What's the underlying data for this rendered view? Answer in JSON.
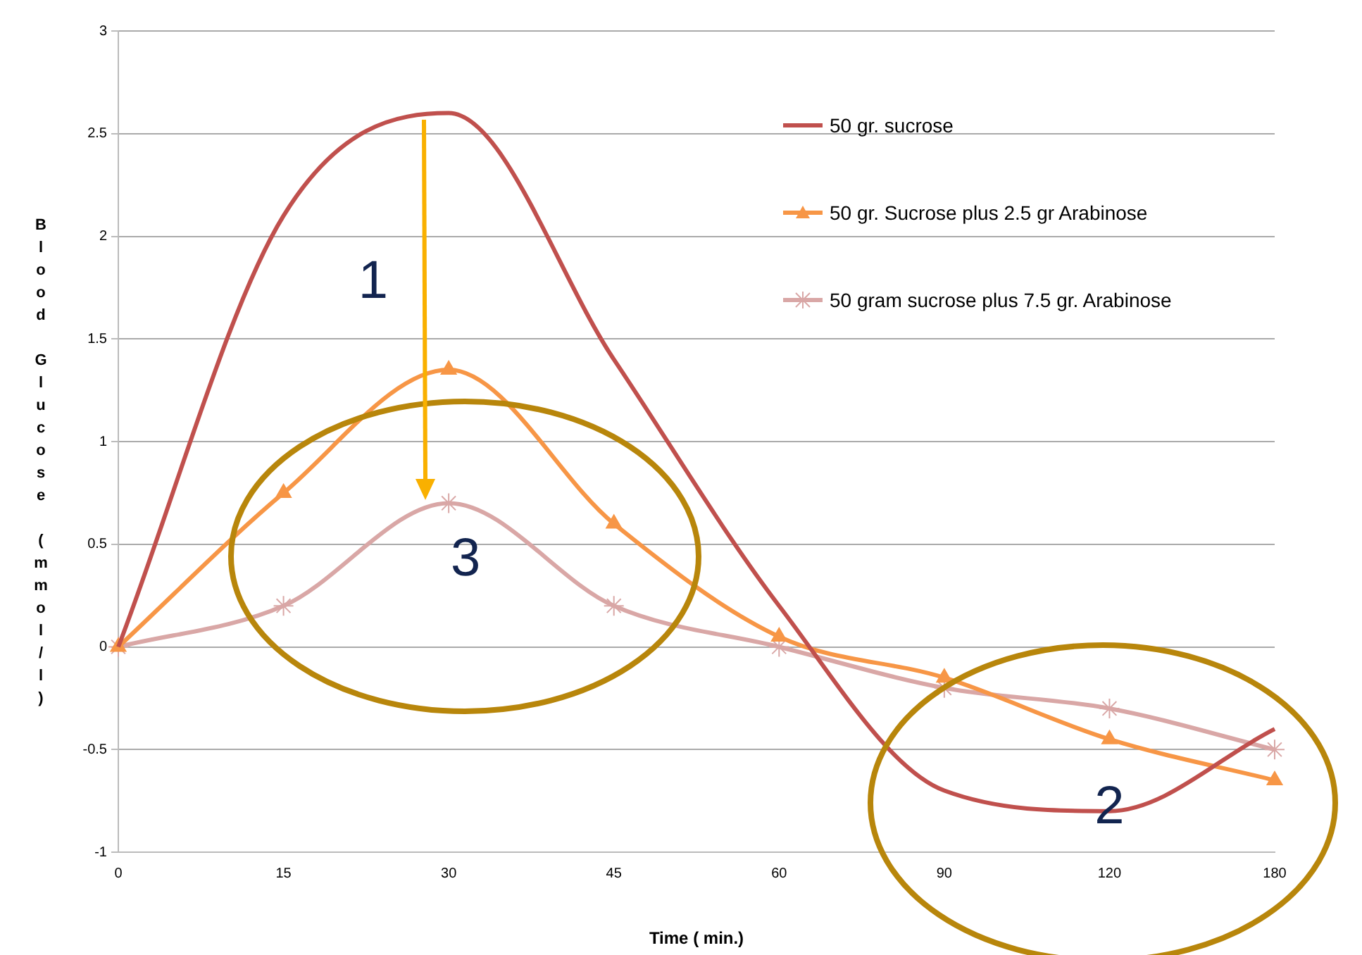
{
  "chart_data": {
    "type": "line",
    "xlabel": "Time ( min.)",
    "ylabel": "Blood Glucose (mmol/l)",
    "categories": [
      "0",
      "15",
      "30",
      "45",
      "60",
      "90",
      "120",
      "180"
    ],
    "series": [
      {
        "name": "50 gr. sucrose",
        "color": "#c0504d",
        "marker": "none",
        "values": [
          0,
          2.1,
          2.6,
          1.4,
          0.2,
          -0.7,
          -0.8,
          -0.4
        ]
      },
      {
        "name": "50 gr. Sucrose plus 2.5 gr Arabinose",
        "color": "#f79646",
        "marker": "triangle",
        "values": [
          0,
          0.75,
          1.35,
          0.6,
          0.05,
          -0.15,
          -0.45,
          -0.65
        ]
      },
      {
        "name": "50 gram sucrose plus 7.5 gr. Arabinose",
        "color": "#d9a7a6",
        "marker": "cross",
        "values": [
          0,
          0.2,
          0.7,
          0.2,
          0,
          -0.2,
          -0.3,
          -0.5
        ]
      }
    ],
    "ylim": [
      -1,
      3
    ],
    "yticks": [
      -1,
      -0.5,
      0,
      0.5,
      1,
      1.5,
      2,
      2.5,
      3
    ],
    "grid": "y",
    "legend": "top right",
    "line_style": "solid",
    "annotations": [
      "1",
      {
        "text": "2",
        "x": "120",
        "y": -0.78
      },
      {
        "text": "3",
        "x": "30",
        "y": 0.7
      }
    ]
  }
}
